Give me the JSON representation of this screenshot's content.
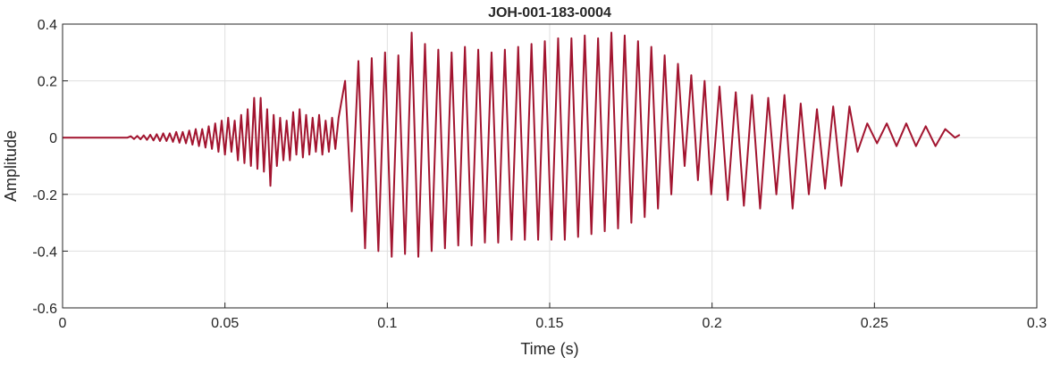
{
  "chart_data": {
    "type": "line",
    "title": "JOH-001-183-0004",
    "x_label": "Time (s)",
    "y_label": "Amplitude",
    "xlim": [
      0,
      0.3
    ],
    "xticks": [
      0,
      0.05,
      0.1,
      0.15,
      0.2,
      0.25,
      0.3
    ],
    "ylim": [
      -0.6,
      0.4
    ],
    "yticks": [
      0.4,
      0.2,
      0,
      -0.2,
      -0.4,
      -0.6
    ],
    "grid": true,
    "x": [
      0,
      0.02,
      0.021,
      0.022,
      0.023,
      0.024,
      0.025,
      0.026,
      0.027,
      0.028,
      0.029,
      0.03,
      0.031,
      0.032,
      0.033,
      0.034,
      0.035,
      0.036,
      0.037,
      0.038,
      0.039,
      0.04,
      0.041,
      0.042,
      0.043,
      0.044,
      0.045,
      0.046,
      0.047,
      0.048,
      0.049,
      0.05,
      0.051,
      0.052,
      0.053,
      0.054,
      0.055,
      0.056,
      0.057,
      0.058,
      0.059,
      0.06,
      0.061,
      0.062,
      0.063,
      0.064,
      0.065,
      0.066,
      0.067,
      0.068,
      0.069,
      0.07,
      0.071,
      0.072,
      0.073,
      0.074,
      0.075,
      0.076,
      0.077,
      0.078,
      0.079,
      0.08,
      0.081,
      0.082,
      0.083,
      0.084,
      0.085,
      0.087,
      0.08905,
      0.0911,
      0.09315,
      0.0952,
      0.09725,
      0.0993,
      0.10135,
      0.1034,
      0.10545,
      0.1075,
      0.10955,
      0.1116,
      0.11365,
      0.1157,
      0.11775,
      0.1198,
      0.12185,
      0.1239,
      0.12595,
      0.128,
      0.13005,
      0.1321,
      0.13415,
      0.1362,
      0.13825,
      0.1403,
      0.14235,
      0.1444,
      0.14645,
      0.1485,
      0.15055,
      0.1526,
      0.15465,
      0.1567,
      0.15875,
      0.1608,
      0.16285,
      0.1649,
      0.16695,
      0.169,
      0.17105,
      0.1731,
      0.17515,
      0.1772,
      0.17925,
      0.1813,
      0.18335,
      0.1854,
      0.18745,
      0.1895,
      0.19155,
      0.1936,
      0.19565,
      0.1977,
      0.19975,
      0.2023,
      0.2048,
      0.2073,
      0.2098,
      0.2123,
      0.2148,
      0.2173,
      0.2198,
      0.2223,
      0.2248,
      0.2273,
      0.2298,
      0.2323,
      0.2348,
      0.2373,
      0.2398,
      0.2423,
      0.2448,
      0.2478,
      0.2508,
      0.2538,
      0.2568,
      0.2598,
      0.2628,
      0.2658,
      0.2688,
      0.2718,
      0.2748,
      0.2763
    ],
    "series": [
      {
        "color": "#a2142f",
        "values": [
          0,
          0,
          0.005,
          -0.005,
          0.006,
          -0.006,
          0.008,
          -0.008,
          0.01,
          -0.01,
          0.012,
          -0.012,
          0.015,
          -0.012,
          0.015,
          -0.015,
          0.02,
          -0.018,
          0.02,
          -0.02,
          0.025,
          -0.025,
          0.03,
          -0.03,
          0.03,
          -0.035,
          0.04,
          -0.04,
          0.05,
          -0.05,
          0.06,
          -0.06,
          0.07,
          -0.05,
          0.06,
          -0.08,
          0.08,
          -0.09,
          0.1,
          -0.1,
          0.14,
          -0.11,
          0.14,
          -0.12,
          0.1,
          -0.17,
          0.08,
          -0.1,
          0.07,
          -0.08,
          0.06,
          -0.08,
          0.09,
          -0.06,
          0.1,
          -0.07,
          0.08,
          -0.06,
          0.07,
          -0.05,
          0.08,
          -0.06,
          0.06,
          -0.05,
          0.07,
          -0.04,
          0.07,
          0.2,
          -0.26,
          0.27,
          -0.39,
          0.28,
          -0.4,
          0.3,
          -0.42,
          0.29,
          -0.41,
          0.37,
          -0.42,
          0.33,
          -0.4,
          0.31,
          -0.39,
          0.3,
          -0.38,
          0.32,
          -0.38,
          0.31,
          -0.37,
          0.3,
          -0.37,
          0.31,
          -0.36,
          0.32,
          -0.36,
          0.33,
          -0.36,
          0.34,
          -0.36,
          0.35,
          -0.36,
          0.35,
          -0.35,
          0.36,
          -0.34,
          0.35,
          -0.33,
          0.37,
          -0.32,
          0.36,
          -0.3,
          0.34,
          -0.28,
          0.32,
          -0.25,
          0.29,
          -0.2,
          0.26,
          -0.1,
          0.22,
          -0.15,
          0.2,
          -0.2,
          0.18,
          -0.22,
          0.16,
          -0.24,
          0.15,
          -0.25,
          0.14,
          -0.2,
          0.15,
          -0.25,
          0.12,
          -0.2,
          0.1,
          -0.18,
          0.11,
          -0.17,
          0.11,
          -0.05,
          0.05,
          -0.02,
          0.05,
          -0.03,
          0.05,
          -0.03,
          0.04,
          -0.03,
          0.03,
          0,
          0.01
        ]
      }
    ]
  }
}
